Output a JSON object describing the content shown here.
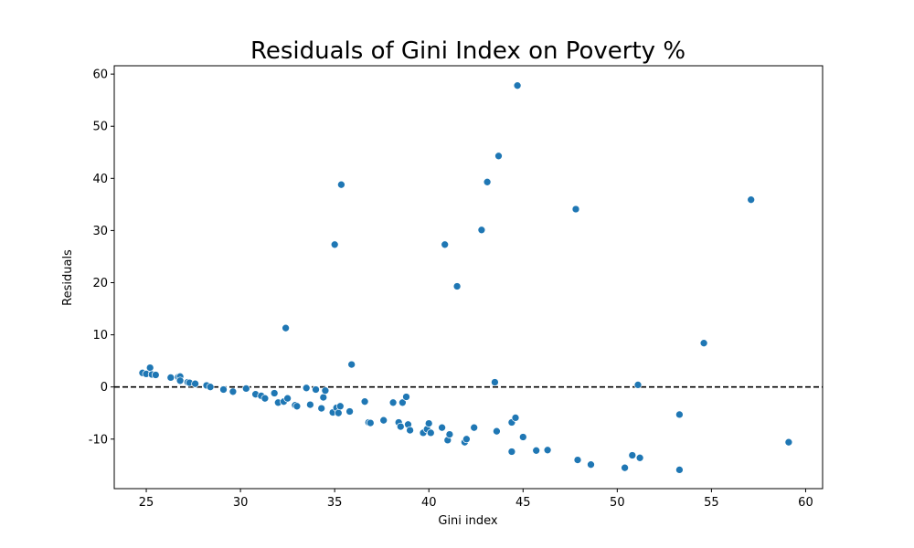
{
  "chart_data": {
    "type": "scatter",
    "title": "Residuals of Gini Index on Poverty %",
    "xlabel": "Gini index",
    "ylabel": "Residuals",
    "xlim": [
      23.3,
      60.9
    ],
    "ylim": [
      -19.5,
      61.6
    ],
    "xticks": [
      25,
      30,
      35,
      40,
      45,
      50,
      55,
      60
    ],
    "yticks": [
      -10,
      0,
      10,
      20,
      30,
      40,
      50,
      60
    ],
    "grid": false,
    "reference_line": {
      "y": 0,
      "style": "dashed",
      "color": "#000000"
    },
    "marker_color": "#1f77b4",
    "marker_edge_color": "#ffffff",
    "points": [
      {
        "x": 24.8,
        "y": 2.7
      },
      {
        "x": 25.0,
        "y": 2.5
      },
      {
        "x": 25.2,
        "y": 3.7
      },
      {
        "x": 25.3,
        "y": 2.4
      },
      {
        "x": 25.5,
        "y": 2.3
      },
      {
        "x": 26.3,
        "y": 1.8
      },
      {
        "x": 26.7,
        "y": 1.9
      },
      {
        "x": 26.8,
        "y": 2.0
      },
      {
        "x": 26.8,
        "y": 1.2
      },
      {
        "x": 27.2,
        "y": 0.9
      },
      {
        "x": 27.3,
        "y": 0.8
      },
      {
        "x": 27.6,
        "y": 0.6
      },
      {
        "x": 28.2,
        "y": 0.3
      },
      {
        "x": 28.4,
        "y": 0.0
      },
      {
        "x": 29.1,
        "y": -0.5
      },
      {
        "x": 29.6,
        "y": -0.9
      },
      {
        "x": 30.3,
        "y": -0.3
      },
      {
        "x": 30.8,
        "y": -1.4
      },
      {
        "x": 31.1,
        "y": -1.7
      },
      {
        "x": 31.3,
        "y": -2.2
      },
      {
        "x": 31.8,
        "y": -1.2
      },
      {
        "x": 32.0,
        "y": -3.0
      },
      {
        "x": 32.3,
        "y": -2.8
      },
      {
        "x": 32.5,
        "y": -2.2
      },
      {
        "x": 32.4,
        "y": 11.3
      },
      {
        "x": 32.9,
        "y": -3.5
      },
      {
        "x": 33.0,
        "y": -3.7
      },
      {
        "x": 33.5,
        "y": -0.2
      },
      {
        "x": 33.7,
        "y": -3.4
      },
      {
        "x": 34.0,
        "y": -0.5
      },
      {
        "x": 34.3,
        "y": -4.1
      },
      {
        "x": 34.4,
        "y": -2.0
      },
      {
        "x": 34.5,
        "y": -0.7
      },
      {
        "x": 34.9,
        "y": -4.9
      },
      {
        "x": 35.0,
        "y": 27.3
      },
      {
        "x": 35.1,
        "y": -4.0
      },
      {
        "x": 35.2,
        "y": -5.0
      },
      {
        "x": 35.3,
        "y": -3.7
      },
      {
        "x": 35.35,
        "y": 38.8
      },
      {
        "x": 35.8,
        "y": -4.7
      },
      {
        "x": 35.9,
        "y": 4.3
      },
      {
        "x": 36.6,
        "y": -2.8
      },
      {
        "x": 36.8,
        "y": -6.8
      },
      {
        "x": 36.9,
        "y": -6.9
      },
      {
        "x": 37.6,
        "y": -6.4
      },
      {
        "x": 38.1,
        "y": -3.0
      },
      {
        "x": 38.4,
        "y": -6.8
      },
      {
        "x": 38.5,
        "y": -7.6
      },
      {
        "x": 38.6,
        "y": -3.0
      },
      {
        "x": 38.8,
        "y": -1.9
      },
      {
        "x": 38.9,
        "y": -7.2
      },
      {
        "x": 39.0,
        "y": -8.3
      },
      {
        "x": 39.7,
        "y": -8.8
      },
      {
        "x": 39.9,
        "y": -8.1
      },
      {
        "x": 40.0,
        "y": -7.0
      },
      {
        "x": 40.1,
        "y": -8.8
      },
      {
        "x": 40.7,
        "y": -7.8
      },
      {
        "x": 40.85,
        "y": 27.3
      },
      {
        "x": 41.0,
        "y": -10.2
      },
      {
        "x": 41.1,
        "y": -9.1
      },
      {
        "x": 41.5,
        "y": 19.3
      },
      {
        "x": 41.9,
        "y": -10.6
      },
      {
        "x": 42.0,
        "y": -10.0
      },
      {
        "x": 42.4,
        "y": -7.8
      },
      {
        "x": 42.8,
        "y": 30.1
      },
      {
        "x": 43.1,
        "y": 39.3
      },
      {
        "x": 43.5,
        "y": 0.9
      },
      {
        "x": 43.6,
        "y": -8.5
      },
      {
        "x": 43.7,
        "y": 44.3
      },
      {
        "x": 44.4,
        "y": -6.8
      },
      {
        "x": 44.4,
        "y": -12.4
      },
      {
        "x": 44.6,
        "y": -5.9
      },
      {
        "x": 44.7,
        "y": 57.8
      },
      {
        "x": 45.0,
        "y": -9.6
      },
      {
        "x": 45.7,
        "y": -12.2
      },
      {
        "x": 46.3,
        "y": -12.1
      },
      {
        "x": 47.8,
        "y": 34.1
      },
      {
        "x": 47.9,
        "y": -14.0
      },
      {
        "x": 48.6,
        "y": -14.9
      },
      {
        "x": 50.4,
        "y": -15.5
      },
      {
        "x": 50.8,
        "y": -13.1
      },
      {
        "x": 51.1,
        "y": 0.4
      },
      {
        "x": 51.2,
        "y": -13.6
      },
      {
        "x": 53.3,
        "y": -5.3
      },
      {
        "x": 53.3,
        "y": -15.9
      },
      {
        "x": 54.6,
        "y": 8.4
      },
      {
        "x": 57.1,
        "y": 35.9
      },
      {
        "x": 59.1,
        "y": -10.6
      }
    ]
  }
}
